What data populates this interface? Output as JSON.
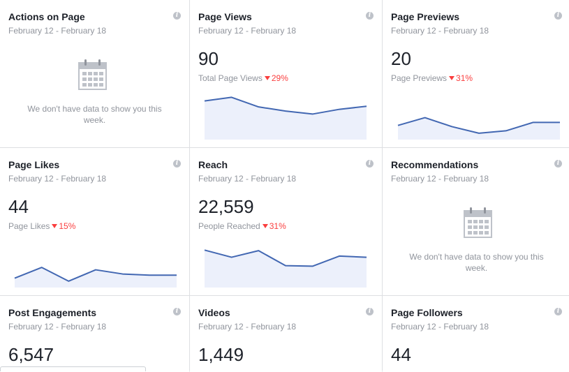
{
  "colors": {
    "line": "#4267b2",
    "area": "#ecf0fb",
    "negative": "#fa3e3e"
  },
  "info_glyph": "i",
  "cards": [
    {
      "title": "Actions on Page",
      "date": "February 12 - February 18",
      "empty": "We don't have data to show you this week.",
      "icon": "calendar-icon"
    },
    {
      "title": "Page Views",
      "date": "February 12 - February 18",
      "value": "90",
      "metric_label": "Total Page Views",
      "change": "29%",
      "trend": [
        60,
        66,
        50,
        43,
        38,
        46,
        51
      ]
    },
    {
      "title": "Page Previews",
      "date": "February 12 - February 18",
      "value": "20",
      "metric_label": "Page Previews",
      "change": "31%",
      "trend": [
        19,
        32,
        17,
        6,
        10,
        24,
        24
      ]
    },
    {
      "title": "Page Likes",
      "date": "February 12 - February 18",
      "value": "44",
      "metric_label": "Page Likes",
      "change": "15%",
      "trend": [
        11,
        29,
        6,
        25,
        18,
        16,
        16
      ]
    },
    {
      "title": "Reach",
      "date": "February 12 - February 18",
      "value": "22,559",
      "metric_label": "People Reached",
      "change": "31%",
      "trend": [
        58,
        46,
        57,
        32,
        31,
        48,
        46
      ]
    },
    {
      "title": "Recommendations",
      "date": "February 12 - February 18",
      "empty": "We don't have data to show you this week.",
      "icon": "calendar-icon"
    },
    {
      "title": "Post Engagements",
      "date": "February 12 - February 18",
      "value": "6,547"
    },
    {
      "title": "Videos",
      "date": "February 12 - February 18",
      "value": "1,449"
    },
    {
      "title": "Page Followers",
      "date": "February 12 - February 18",
      "value": "44"
    }
  ]
}
